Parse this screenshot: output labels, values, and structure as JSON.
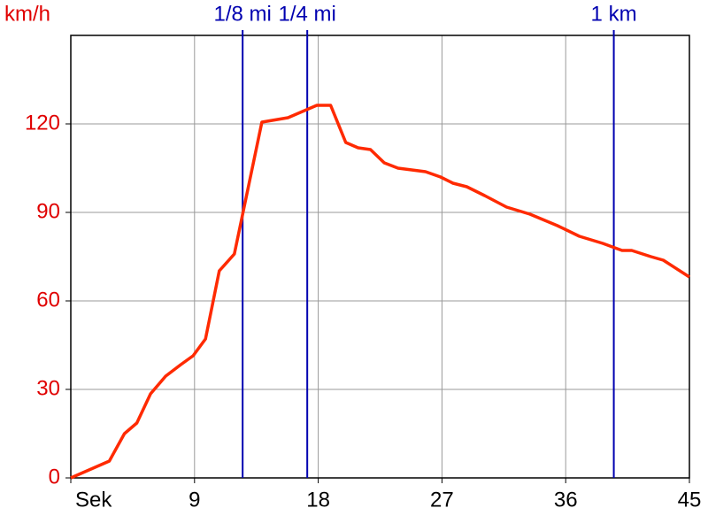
{
  "chart_data": {
    "type": "line",
    "y_unit": "km/h",
    "x": [
      0,
      2.8,
      3.9,
      4.8,
      5.8,
      6.9,
      8.0,
      8.9,
      9.8,
      10.8,
      11.9,
      13.9,
      15.8,
      17.9,
      18.9,
      20.0,
      20.9,
      21.8,
      22.8,
      23.8,
      25.8,
      26.9,
      27.8,
      28.8,
      30.1,
      31.7,
      33.4,
      35.4,
      37.0,
      38.7,
      40.1,
      40.8,
      42.2,
      43.1,
      45
    ],
    "values": [
      0,
      5.7,
      15,
      18.6,
      28.5,
      34.5,
      38.4,
      41.4,
      47.1,
      70.2,
      75.9,
      120.6,
      122.1,
      126.3,
      126.3,
      113.7,
      111.9,
      111.3,
      106.8,
      105,
      103.8,
      102,
      99.9,
      98.7,
      95.7,
      91.8,
      89.4,
      85.5,
      81.9,
      79.5,
      77.1,
      77.1,
      75,
      73.8,
      68.1
    ],
    "color": "#ff2a00",
    "xlim": [
      0,
      45
    ],
    "xticks": [
      {
        "value": 0,
        "label": "Sek"
      },
      9,
      18,
      27,
      36,
      45
    ],
    "ylim": [
      0,
      150
    ],
    "yticks": [
      0,
      30,
      60,
      90,
      120
    ],
    "grid": true,
    "markers": [
      {
        "label": "1/8 mi",
        "x": 12.5
      },
      {
        "label": "1/4 mi",
        "x": 17.2
      },
      {
        "label": "1 km",
        "x": 39.5
      }
    ],
    "marker_color": "#0000b0"
  }
}
